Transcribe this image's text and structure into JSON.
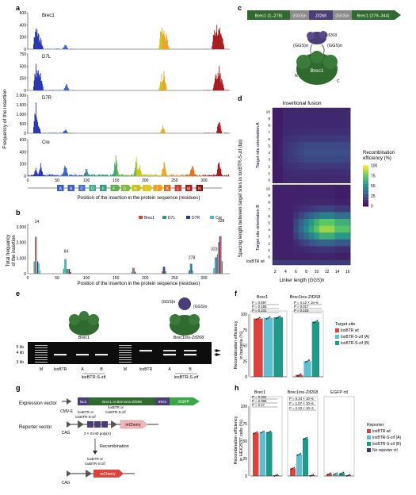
{
  "panels": {
    "a": {
      "letter": "a",
      "ylabel": "Frequency of the insertion",
      "xlabel": "Position of the insertion in the protein sequence (residues)",
      "subplots": [
        {
          "name": "Brec1",
          "ymax": 600,
          "ticks": [
            "0",
            "200",
            "400",
            "600"
          ]
        },
        {
          "name": "D7L",
          "ymax": 750,
          "ticks": [
            "0",
            "250",
            "500",
            "750"
          ]
        },
        {
          "name": "D7R",
          "ymax": 2000,
          "ticks": [
            "0",
            "500",
            "1,000",
            "1,500",
            "2,000"
          ]
        },
        {
          "name": "Cre",
          "ymax": 600,
          "ticks": [
            "0",
            "200",
            "400",
            "600"
          ]
        }
      ],
      "xticks": [
        "0",
        "50",
        "100",
        "150",
        "200",
        "250",
        "300"
      ],
      "domains": [
        "A",
        "B",
        "C",
        "D",
        "E",
        "F",
        "G",
        "H",
        "I",
        "J",
        "K",
        "L",
        "M",
        "N"
      ]
    },
    "b": {
      "letter": "b",
      "ylabel": "Total frequency of the insertion",
      "xlabel": "Position of the insertion in the protein sequence (residues)",
      "legend": [
        "Brec1",
        "D7L",
        "D7R",
        "Cre"
      ],
      "legend_colors": [
        "#d9443c",
        "#2e9e78",
        "#2c3a8c",
        "#4fb6c9"
      ],
      "yticks": [
        "0",
        "1,000",
        "2,000",
        "3,000"
      ],
      "xticks": [
        "0",
        "50",
        "100",
        "150",
        "200",
        "250",
        "300"
      ],
      "peaks": [
        "14",
        "64",
        "278",
        "323",
        "328"
      ]
    },
    "c": {
      "letter": "c",
      "construct": [
        "Brec1 (1–278)",
        "(GGS)n",
        "Zif268",
        "(GGS)n",
        "Brec1 (279–344)"
      ],
      "zif_label": "Zif268",
      "linker_left": "(GGS)n",
      "linker_right": "(GGS)n",
      "protein_label": "Brec1",
      "n_label": "N",
      "c_label": "C"
    },
    "d": {
      "letter": "d",
      "title": "Insertional fusion",
      "ylabel": "Spacing length between target sites in loxBTR-S-zif (bp)",
      "orientation_a": "Target site orientation A",
      "orientation_b": "Target site orientation B",
      "yticks_a": [
        "0",
        "1",
        "2",
        "3",
        "4",
        "5",
        "6",
        "7",
        "8",
        "9",
        "10"
      ],
      "yticks_b": [
        "0",
        "1",
        "2",
        "3",
        "4",
        "5",
        "6",
        "7",
        "8",
        "9",
        "10"
      ],
      "xticks": [
        "2",
        "4",
        "6",
        "8",
        "10",
        "12",
        "14",
        "16"
      ],
      "xlabel": "Linker length (GGS)n",
      "wt_label": "loxBTR wt",
      "colorbar_title": "Recombination efficiency (%)",
      "colorbar_ticks": [
        "0",
        "25",
        "50",
        "75",
        "100"
      ]
    },
    "e": {
      "letter": "e",
      "linker_left": "(GGS)n",
      "linker_right": "(GGS)n",
      "label_left": "Brec1",
      "label_right": "Brec1ins-Zif268",
      "size_markers": [
        "5 kb",
        "4 kb",
        "3 kb"
      ],
      "lanes": [
        "M",
        "loxBTR",
        "A",
        "B",
        "M",
        "loxBTR",
        "A",
        "B"
      ],
      "group_label": "loxBTR-S-zif"
    },
    "f": {
      "letter": "f",
      "groups": [
        "Brec1",
        "Brec1ins-Zif268"
      ],
      "ylabel": "Recombination efficiency in bacteria (%)",
      "yticks": [
        "0",
        "25",
        "50",
        "75",
        "100"
      ],
      "stats_left": [
        "P = 0.597",
        "P = 0.155",
        "P = 0.231"
      ],
      "stats_right": [
        "P = 4.12 × 10−6",
        "P = 0.017",
        "P = 0.103"
      ],
      "legend_title": "Target site",
      "legend": [
        "loxBTR wt",
        "loxBTR-S-zif (A)",
        "loxBTR-S-zif (B)"
      ],
      "legend_colors": [
        "#d9443c",
        "#5fbecf",
        "#1f9a8a"
      ],
      "values_left": [
        93,
        94,
        95
      ],
      "values_right": [
        3,
        25,
        88
      ]
    },
    "g": {
      "letter": "g",
      "expression_label": "Expression vector",
      "reporter_label": "Reporter vector",
      "cmv": "CMV-E",
      "nls": "NLS",
      "construct": "Brec1 or Brec1ins-Zif268",
      "ires": "IRES",
      "egfp": "EGFP",
      "cag": "CAG",
      "site_left": "loxBTR or loxBTR-S-zif",
      "site_right": "loxBTR or loxBTR-S-zif",
      "stop": "3 × SV40 poly(A)",
      "mcherry": "mCherry",
      "recombination": "Recombination",
      "site_after": "loxBTR or loxBTR-S-zif",
      "cag2": "CAG",
      "mcherry2": "mCherry"
    },
    "h": {
      "letter": "h",
      "groups": [
        "Brec1",
        "Brec1ins-Zif268",
        "EGFP ctl"
      ],
      "ylabel": "Recombination efficiency in HEK293T cells (%)",
      "yticks": [
        "0",
        "25",
        "50",
        "75",
        "100"
      ],
      "stats_left": [
        "P = 0.331",
        "P = 0.985",
        "P = 0.47"
      ],
      "stats_right": [
        "P = 9.34 × 10−6",
        "P = 1.07 × 10−5",
        "P = 2.23 × 10−3"
      ],
      "legend_title": "Reporter",
      "legend": [
        "loxBTR wt",
        "loxBTR-S-zif (A)",
        "loxBTR-S-zif (B)",
        "No reporter ctl"
      ],
      "legend_colors": [
        "#d9443c",
        "#5fbecf",
        "#1f9a8a",
        "#333a6e"
      ],
      "values_brec": [
        62,
        63,
        63,
        1
      ],
      "values_ins": [
        11,
        31,
        54,
        1
      ],
      "values_ctl": [
        3,
        3,
        4,
        1
      ]
    }
  },
  "colors": {
    "dark_green": "#2f6b2f",
    "purple": "#4b3d7a",
    "red": "#d9443c",
    "teal": "#1f9a8a",
    "cyan": "#5fbecf"
  }
}
